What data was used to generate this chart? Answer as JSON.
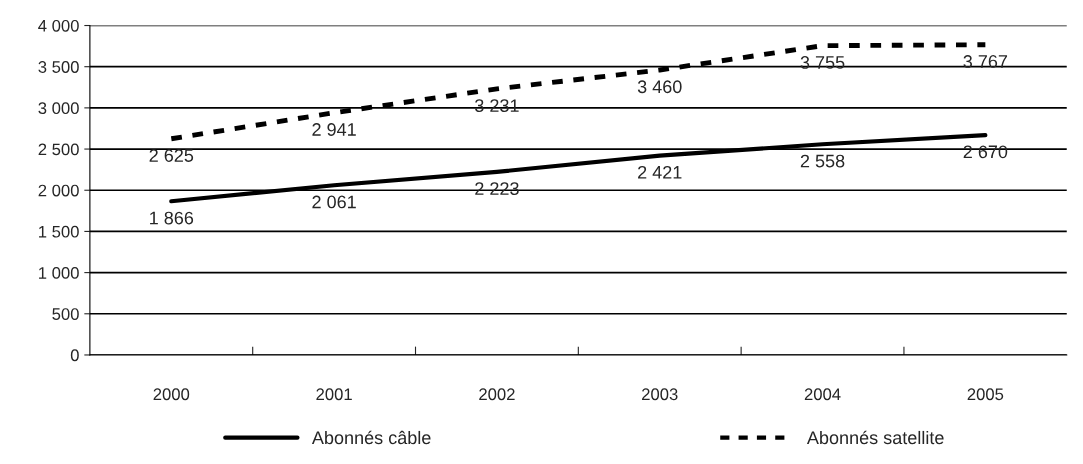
{
  "chart_data": {
    "type": "line",
    "categories": [
      "2000",
      "2001",
      "2002",
      "2003",
      "2004",
      "2005"
    ],
    "series": [
      {
        "name": "Abonnés câble",
        "color": "#000000",
        "line_style": "solid",
        "values": [
          1866,
          2061,
          2223,
          2421,
          2558,
          2670
        ],
        "value_labels": [
          "1 866",
          "2 061",
          "2 223",
          "2 421",
          "2 558",
          "2 670"
        ]
      },
      {
        "name": "Abonnés satellite",
        "color": "#000000",
        "line_style": "dashed",
        "values": [
          2625,
          2941,
          3231,
          3460,
          3755,
          3767
        ],
        "value_labels": [
          "2 625",
          "2 941",
          "3 231",
          "3 460",
          "3 755",
          "3 767"
        ]
      }
    ],
    "ylim": [
      0,
      4000
    ],
    "yticks": [
      {
        "value": 0,
        "label": "0"
      },
      {
        "value": 500,
        "label": "500"
      },
      {
        "value": 1000,
        "label": "1 000"
      },
      {
        "value": 1500,
        "label": "1 500"
      },
      {
        "value": 2000,
        "label": "2 000"
      },
      {
        "value": 2500,
        "label": "2 500"
      },
      {
        "value": 3000,
        "label": "3 000"
      },
      {
        "value": 3500,
        "label": "3 500"
      },
      {
        "value": 4000,
        "label": "4 000"
      }
    ],
    "grid": "y",
    "legend": "bottom",
    "marker": "none"
  }
}
